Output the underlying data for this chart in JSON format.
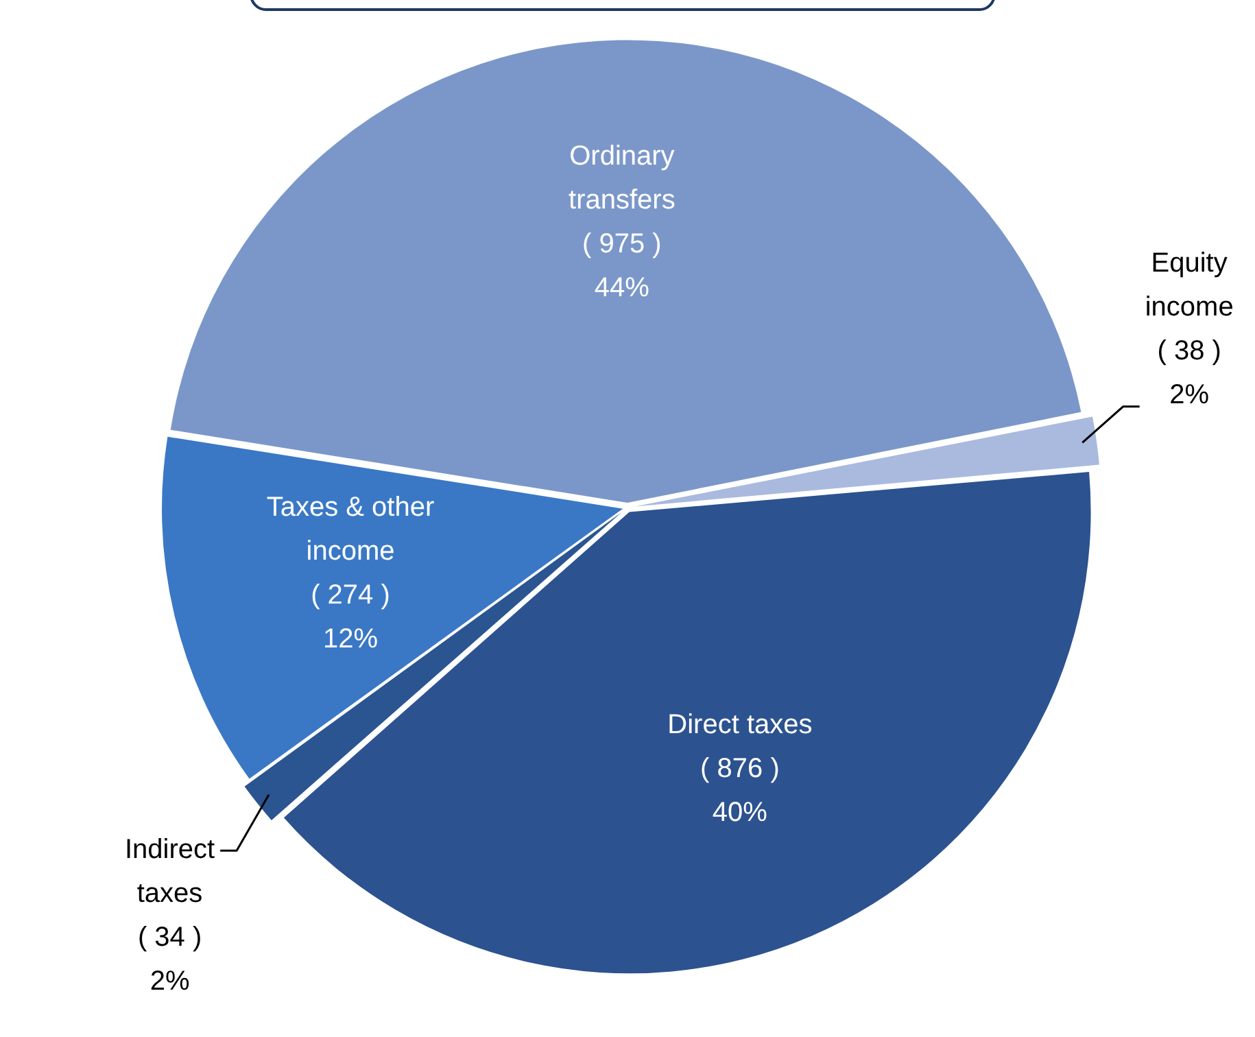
{
  "chart_data": {
    "type": "pie",
    "categories": [
      "Ordinary transfers",
      "Equity income",
      "Direct taxes",
      "Indirect taxes",
      "Taxes & other income"
    ],
    "values": [
      975,
      38,
      876,
      34,
      274
    ],
    "colors": [
      "#7b97c9",
      "#a9bade",
      "#2c5290",
      "#2b5591",
      "#3a78c6"
    ],
    "value_labels": [
      "( 975 )\n44%",
      "( 38 )\n2%",
      "( 876 )\n40%",
      "( 34 )\n2%",
      "( 274 )\n12%"
    ],
    "legend": false
  }
}
